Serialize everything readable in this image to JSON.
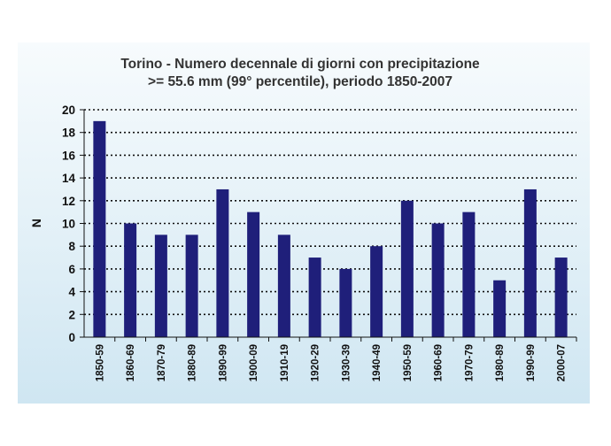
{
  "chart_data": {
    "type": "bar",
    "title": "Torino - Numero decennale di giorni con precipitazione",
    "subtitle": ">= 55.6 mm (99° percentile), periodo 1850-2007",
    "xlabel": "",
    "ylabel": "N",
    "ylim": [
      0,
      20
    ],
    "yticks": [
      0,
      2,
      4,
      6,
      8,
      10,
      12,
      14,
      16,
      18,
      20
    ],
    "grid": true,
    "grid_style": "dotted",
    "categories": [
      "1850-59",
      "1860-69",
      "1870-79",
      "1880-89",
      "1890-99",
      "1900-09",
      "1910-19",
      "1920-29",
      "1930-39",
      "1940-49",
      "1950-59",
      "1960-69",
      "1970-79",
      "1980-89",
      "1990-99",
      "2000-07"
    ],
    "values": [
      19,
      10,
      9,
      9,
      13,
      11,
      9,
      7,
      6,
      8,
      12,
      10,
      11,
      5,
      13,
      7
    ],
    "bar_color": "#1f1f7a"
  }
}
